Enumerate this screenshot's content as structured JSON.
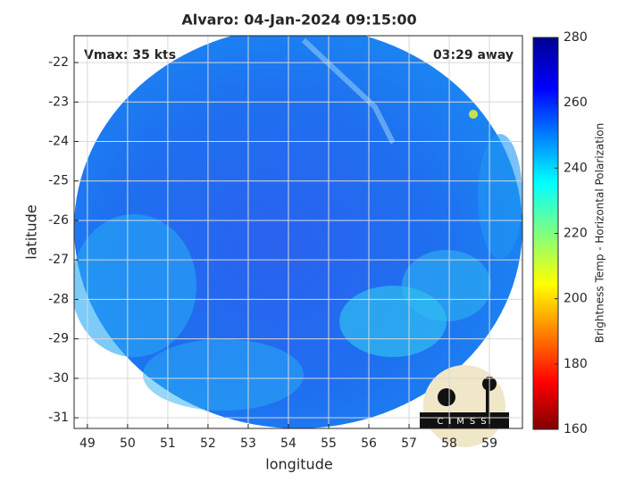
{
  "chart_data": {
    "type": "image",
    "title": "Alvaro: 04-Jan-2024 09:15:00",
    "annotations": [
      "Vmax: 35 kts",
      "03:29 away"
    ],
    "xlabel": "longitude",
    "ylabel": "latitude",
    "xlim": [
      48.67,
      59.82
    ],
    "xticks": [
      49,
      50,
      51,
      52,
      53,
      54,
      55,
      56,
      57,
      58,
      59
    ],
    "ylim": [
      -31.27,
      -21.32
    ],
    "yticks": [
      -22,
      -23,
      -24,
      -25,
      -26,
      -27,
      -28,
      -29,
      -30,
      -31
    ],
    "grid": true,
    "colorbar": {
      "label": "Brightness Temp - Horizontal Polarization",
      "lim": [
        160,
        280
      ],
      "ticks": [
        160,
        180,
        200,
        220,
        240,
        260,
        280
      ]
    }
  },
  "logo": "CIMSS"
}
